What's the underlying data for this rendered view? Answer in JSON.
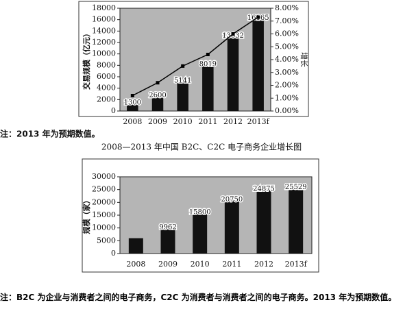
{
  "chart_data": [
    {
      "type": "bar",
      "ylabel": "交易规模（亿元）",
      "y2label": "增长",
      "categories": [
        "2008",
        "2009",
        "2010",
        "2011",
        "2012",
        "2013f"
      ],
      "series": [
        {
          "type": "bar",
          "color": "#111111",
          "values": [
            1300,
            2600,
            5141,
            8019,
            13032,
            16165
          ]
        },
        {
          "type": "line",
          "color": "#000000",
          "axis": "y2",
          "values": [
            1.2,
            2.2,
            3.5,
            4.4,
            6.0,
            7.3
          ]
        }
      ],
      "ylim": [
        0,
        18000
      ],
      "yticks": [
        0,
        2000,
        4000,
        6000,
        8000,
        10000,
        12000,
        14000,
        16000,
        18000
      ],
      "y2lim": [
        0,
        8
      ],
      "y2ticks": [
        {
          "value": 0,
          "label": "0.00%"
        },
        {
          "value": 1,
          "label": "1.00%"
        },
        {
          "value": 2,
          "label": "2.00%"
        },
        {
          "value": 3,
          "label": "3.00%"
        },
        {
          "value": 4,
          "label": "4.00%"
        },
        {
          "value": 5,
          "label": "5.00%"
        },
        {
          "value": 6,
          "label": "6.00%"
        },
        {
          "value": 7,
          "label": "7.00%"
        },
        {
          "value": 8,
          "label": "8.00%"
        }
      ],
      "note": "注：2013 年为预期数值。"
    },
    {
      "type": "bar",
      "title": "2008—2013 年中国 B2C、C2C 电子商务企业增长图",
      "ylabel": "规模（家）",
      "categories": [
        "2008",
        "2009",
        "2010",
        "2011",
        "2012",
        "2013f"
      ],
      "series": [
        {
          "type": "bar",
          "color": "#111111",
          "values": [
            6000,
            9962,
            15800,
            20750,
            24875,
            25529
          ],
          "value_labels": [
            null,
            "9962",
            "15800",
            "20750",
            "24875",
            "25529"
          ]
        }
      ],
      "ylim": [
        0,
        30000
      ],
      "yticks": [
        0,
        5000,
        10000,
        15000,
        20000,
        25000,
        30000
      ],
      "note": "注：B2C 为企业与消费者之间的电子商务，C2C 为消费者与消费者之间的电子商务。2013 年为预期数值。"
    }
  ]
}
